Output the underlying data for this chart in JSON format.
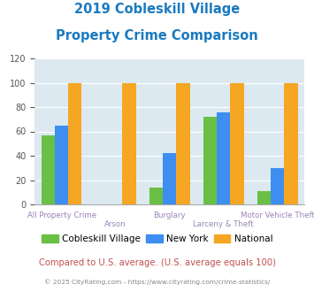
{
  "title_line1": "2019 Cobleskill Village",
  "title_line2": "Property Crime Comparison",
  "title_color": "#1a7abf",
  "categories": [
    "All Property Crime",
    "Arson",
    "Burglary",
    "Larceny & Theft",
    "Motor Vehicle Theft"
  ],
  "cobleskill": [
    57,
    0,
    14,
    72,
    11
  ],
  "new_york": [
    65,
    0,
    42,
    76,
    30
  ],
  "national": [
    100,
    100,
    100,
    100,
    100
  ],
  "colors": {
    "cobleskill": "#6abf45",
    "new_york": "#3d8ef0",
    "national": "#f5a623"
  },
  "ylim": [
    0,
    120
  ],
  "yticks": [
    0,
    20,
    40,
    60,
    80,
    100,
    120
  ],
  "xlabel_color": "#9b84b8",
  "legend_labels": [
    "Cobleskill Village",
    "New York",
    "National"
  ],
  "footnote": "Compared to U.S. average. (U.S. average equals 100)",
  "footnote_color": "#c05050",
  "copyright": "© 2025 CityRating.com - https://www.cityrating.com/crime-statistics/",
  "copyright_color": "#888888",
  "plot_bg_color": "#dce9f0",
  "grid_color": "#ffffff",
  "bar_width": 0.25
}
